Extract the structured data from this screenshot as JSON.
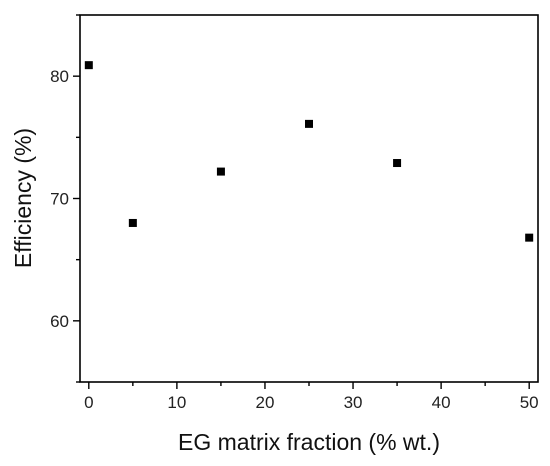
{
  "chart_data": {
    "type": "scatter",
    "title": "",
    "xlabel": "EG matrix fraction (% wt.)",
    "ylabel": "Efficiency (%)",
    "xlim": [
      -1,
      51
    ],
    "ylim": [
      55,
      85
    ],
    "xticks": [
      0,
      10,
      20,
      30,
      40,
      50
    ],
    "yticks": [
      60,
      70,
      80
    ],
    "grid": false,
    "legend": "none",
    "series": [
      {
        "x": [
          0,
          5,
          15,
          25,
          35,
          50
        ],
        "y": [
          80.9,
          68.0,
          72.2,
          76.1,
          72.9,
          66.8
        ],
        "marker": "square",
        "color": "#000000"
      }
    ]
  }
}
